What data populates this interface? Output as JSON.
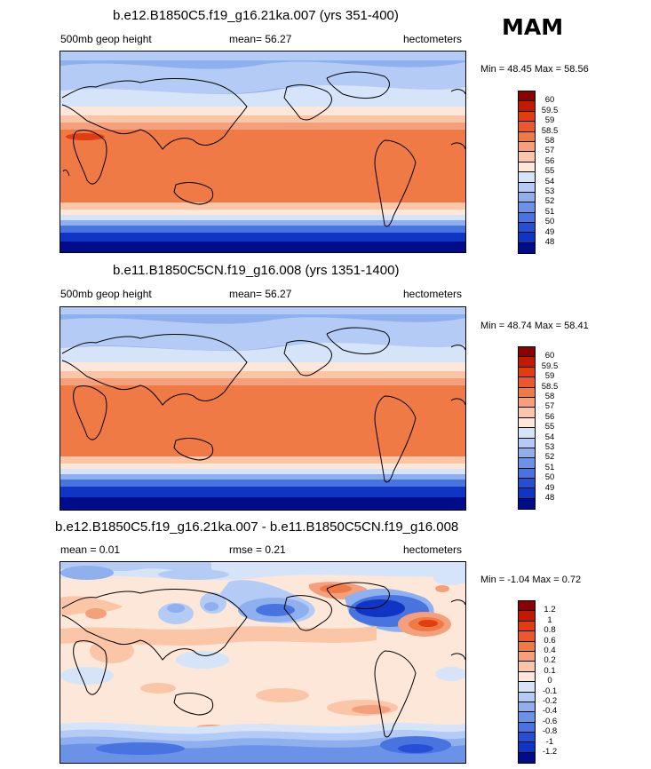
{
  "season": "MAM",
  "panels": [
    {
      "title": "b.e12.B1850C5.f19_g16.21ka.007 (yrs 351-400)",
      "left_label": "500mb geop height",
      "center_label": "mean=  56.27",
      "right_label": "hectometers",
      "minmax": "Min =  48.45 Max =  58.56",
      "type": "abs"
    },
    {
      "title": "b.e11.B1850C5CN.f19_g16.008 (yrs 1351-1400)",
      "left_label": "500mb geop height",
      "center_label": "mean=  56.27",
      "right_label": "hectometers",
      "minmax": "Min =  48.74 Max =  58.41",
      "type": "abs"
    },
    {
      "title": "b.e12.B1850C5.f19_g16.21ka.007 - b.e11.B1850C5CN.f19_g16.008",
      "left_label": "mean =   0.01",
      "center_label": "rmse =   0.21",
      "right_label": "hectometers",
      "minmax": "Min =  -1.04 Max =   0.72",
      "type": "diff"
    }
  ],
  "colorbars": {
    "abs": {
      "labels": [
        "60",
        "59.5",
        "59",
        "58.5",
        "58",
        "57",
        "56",
        "55",
        "54",
        "53",
        "52",
        "51",
        "50",
        "49",
        "48"
      ],
      "colors": [
        "#8b0000",
        "#c21a00",
        "#e03d10",
        "#ea5a28",
        "#f07a45",
        "#f5a07c",
        "#fbc5a8",
        "#fde7d8",
        "#d6e4fa",
        "#b3cbf5",
        "#8eb0ef",
        "#6a93e8",
        "#4874e0",
        "#2550d6",
        "#1034c4",
        "#000c8a"
      ]
    },
    "diff": {
      "labels": [
        "1.2",
        "1",
        "0.8",
        "0.6",
        "0.4",
        "0.2",
        "0.1",
        "0",
        "-0.1",
        "-0.2",
        "-0.4",
        "-0.6",
        "-0.8",
        "-1",
        "-1.2"
      ],
      "colors": [
        "#8b0000",
        "#c21a00",
        "#e03d10",
        "#ea5a28",
        "#f07a45",
        "#f5a07c",
        "#fbc5a8",
        "#fde7d8",
        "#d6e4fa",
        "#b3cbf5",
        "#8eb0ef",
        "#6a93e8",
        "#4874e0",
        "#2550d6",
        "#1034c4",
        "#000c8a"
      ]
    }
  }
}
